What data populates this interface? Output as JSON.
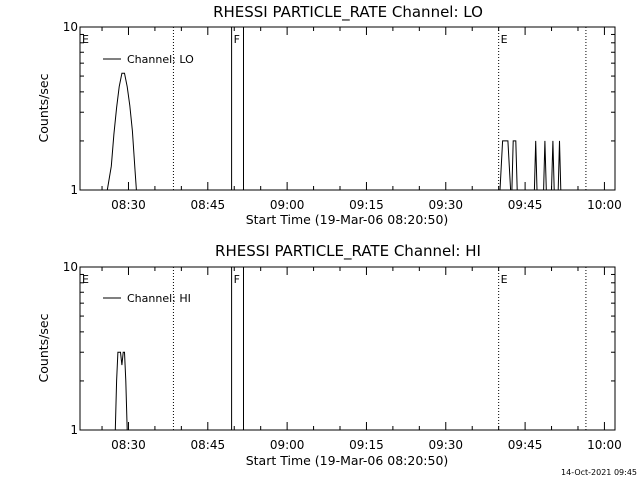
{
  "chart_data": [
    {
      "type": "line",
      "title": "RHESSI PARTICLE_RATE Channel: LO",
      "xlabel": "Start Time (19-Mar-06 08:20:50)",
      "ylabel": "Counts/sec",
      "y_scale": "log",
      "xlim": [
        "08:20:50",
        "10:02:00"
      ],
      "ylim": [
        1,
        10
      ],
      "x_ticks": [
        "08:30",
        "08:45",
        "09:00",
        "09:15",
        "09:30",
        "09:45",
        "10:00"
      ],
      "y_ticks": [
        "1",
        "10"
      ],
      "grid": false,
      "legend_position": "top-left",
      "series": [
        {
          "name": "Channel: LO",
          "points": [
            [
              "08:26:00",
              1
            ],
            [
              "08:26:45",
              1.4
            ],
            [
              "08:27:15",
              2.2
            ],
            [
              "08:27:45",
              3.2
            ],
            [
              "08:28:15",
              4.3
            ],
            [
              "08:28:45",
              5.2
            ],
            [
              "08:29:15",
              5.2
            ],
            [
              "08:29:45",
              4.3
            ],
            [
              "08:30:15",
              3.3
            ],
            [
              "08:30:45",
              2.3
            ],
            [
              "08:31:15",
              1.3
            ],
            [
              "08:31:30",
              1
            ],
            [
              "09:40:15",
              1
            ],
            [
              "09:40:45",
              2
            ],
            [
              "09:41:45",
              2
            ],
            [
              "09:42:15",
              1
            ],
            [
              "09:42:30",
              1
            ],
            [
              "09:42:45",
              2
            ],
            [
              "09:43:15",
              2
            ],
            [
              "09:43:30",
              1
            ],
            [
              "09:46:45",
              1
            ],
            [
              "09:47:00",
              2
            ],
            [
              "09:47:15",
              1
            ],
            [
              "09:48:30",
              1
            ],
            [
              "09:48:45",
              2
            ],
            [
              "09:49:00",
              1
            ],
            [
              "09:50:00",
              1
            ],
            [
              "09:50:15",
              2
            ],
            [
              "09:50:30",
              1
            ],
            [
              "09:51:15",
              1
            ],
            [
              "09:51:30",
              2
            ],
            [
              "09:51:45",
              1
            ]
          ]
        }
      ],
      "markers": [
        {
          "label": "E",
          "time": "08:20:50",
          "style": "dotted"
        },
        {
          "label": "",
          "time": "08:38:30",
          "style": "dotted"
        },
        {
          "label": "F",
          "time": "08:49:30",
          "style": "solid"
        },
        {
          "label": "",
          "time": "08:51:45",
          "style": "solid"
        },
        {
          "label": "E",
          "time": "09:40:00",
          "style": "dotted"
        },
        {
          "label": "",
          "time": "09:56:30",
          "style": "dotted"
        }
      ]
    },
    {
      "type": "line",
      "title": "RHESSI PARTICLE_RATE Channel: HI",
      "xlabel": "Start Time (19-Mar-06 08:20:50)",
      "ylabel": "Counts/sec",
      "y_scale": "log",
      "xlim": [
        "08:20:50",
        "10:02:00"
      ],
      "ylim": [
        1,
        10
      ],
      "x_ticks": [
        "08:30",
        "08:45",
        "09:00",
        "09:15",
        "09:30",
        "09:45",
        "10:00"
      ],
      "y_ticks": [
        "1",
        "10"
      ],
      "grid": false,
      "legend_position": "top-left",
      "series": [
        {
          "name": "Channel: HI",
          "points": [
            [
              "08:27:30",
              1
            ],
            [
              "08:27:45",
              2
            ],
            [
              "08:28:00",
              3
            ],
            [
              "08:28:30",
              3
            ],
            [
              "08:28:45",
              2.5
            ],
            [
              "08:29:00",
              3
            ],
            [
              "08:29:15",
              3
            ],
            [
              "08:29:30",
              2
            ],
            [
              "08:29:45",
              1
            ]
          ]
        }
      ],
      "markers": [
        {
          "label": "E",
          "time": "08:20:50",
          "style": "dotted"
        },
        {
          "label": "",
          "time": "08:38:30",
          "style": "dotted"
        },
        {
          "label": "F",
          "time": "08:49:30",
          "style": "solid"
        },
        {
          "label": "",
          "time": "08:51:45",
          "style": "solid"
        },
        {
          "label": "E",
          "time": "09:40:00",
          "style": "dotted"
        },
        {
          "label": "",
          "time": "09:56:30",
          "style": "dotted"
        }
      ]
    }
  ],
  "footer": {
    "timestamp": "14-Oct-2021 09:45"
  }
}
